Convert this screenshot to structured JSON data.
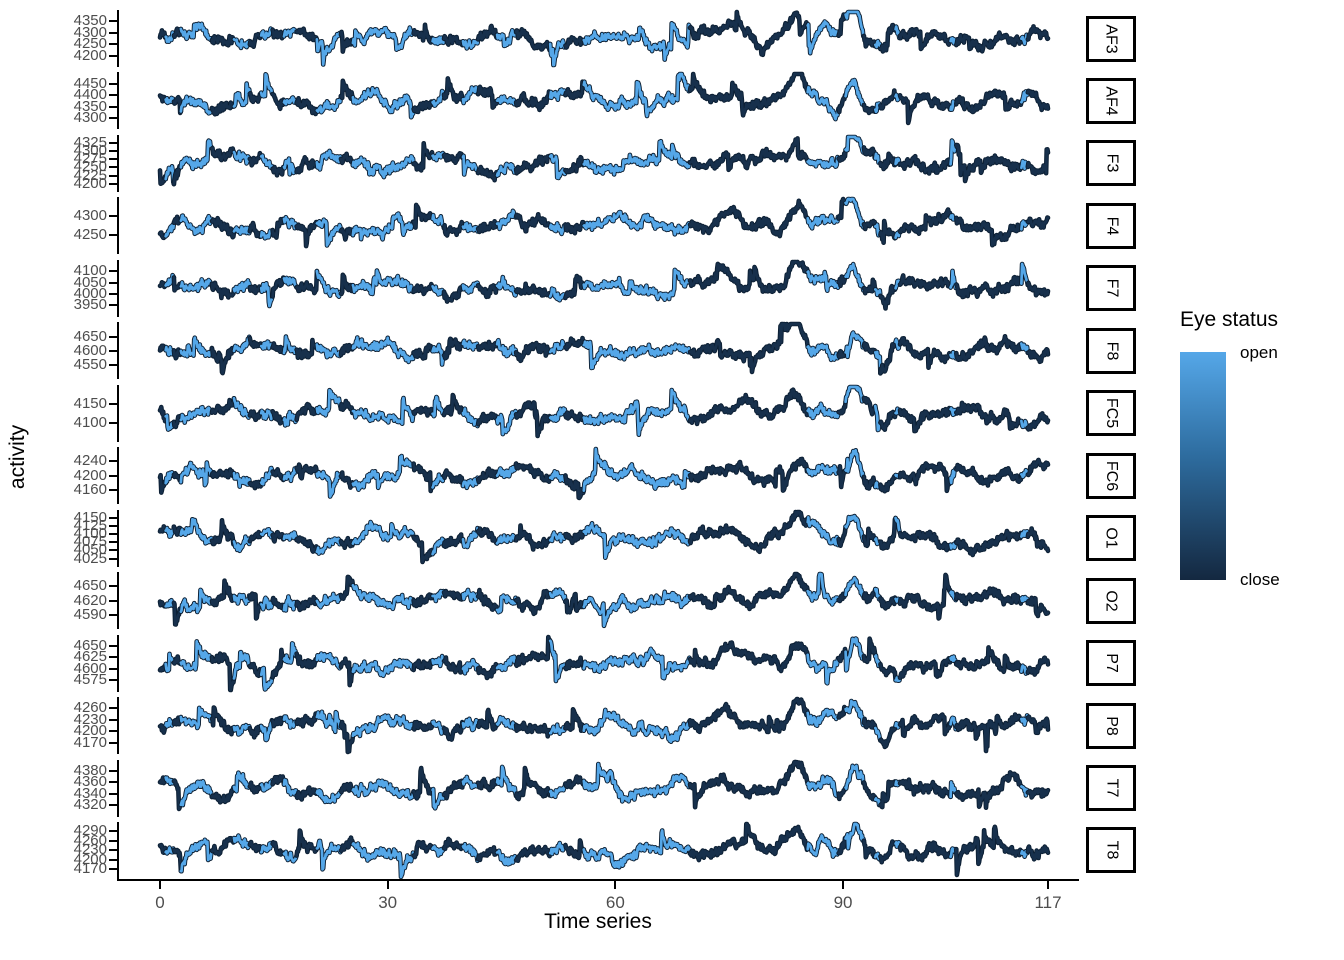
{
  "figure": {
    "kind": "faceted EEG time-series plot",
    "background": "#FFFFFF",
    "axis_color": "#000000",
    "tick_label_color": "#4D4D4D"
  },
  "chart_data": {
    "type": "line",
    "title": "",
    "xlabel": "Time series",
    "ylabel": "activity",
    "x_ticks": [
      0,
      30,
      60,
      90,
      117
    ],
    "xlim": [
      0,
      117
    ],
    "grid": false,
    "legend": {
      "title": "Eye status",
      "position": "right",
      "style": "colorbar",
      "top_label": "open",
      "bottom_label": "close",
      "entries": [
        {
          "label": "open",
          "color": "#55A7E8"
        },
        {
          "label": "close",
          "color": "#17304C"
        }
      ],
      "gradient": [
        "#55A7E8",
        "#2E6DA0",
        "#142840"
      ]
    },
    "facets": [
      {
        "label": "AF3",
        "yticks": [
          4200,
          4250,
          4300,
          4350
        ]
      },
      {
        "label": "AF4",
        "yticks": [
          4300,
          4350,
          4400,
          4450
        ]
      },
      {
        "label": "F3",
        "yticks": [
          4200,
          4225,
          4250,
          4275,
          4300,
          4325
        ]
      },
      {
        "label": "F4",
        "yticks": [
          4250,
          4300
        ]
      },
      {
        "label": "F7",
        "yticks": [
          3950,
          4000,
          4050,
          4100
        ]
      },
      {
        "label": "F8",
        "yticks": [
          4550,
          4600,
          4650
        ]
      },
      {
        "label": "FC5",
        "yticks": [
          4100,
          4150
        ]
      },
      {
        "label": "FC6",
        "yticks": [
          4160,
          4200,
          4240
        ]
      },
      {
        "label": "O1",
        "yticks": [
          4025,
          4050,
          4075,
          4100,
          4125,
          4150
        ]
      },
      {
        "label": "O2",
        "yticks": [
          4590,
          4620,
          4650
        ]
      },
      {
        "label": "P7",
        "yticks": [
          4575,
          4600,
          4625,
          4650
        ]
      },
      {
        "label": "P8",
        "yticks": [
          4170,
          4200,
          4230,
          4260
        ]
      },
      {
        "label": "T7",
        "yticks": [
          4320,
          4340,
          4360,
          4380
        ]
      },
      {
        "label": "T8",
        "yticks": [
          4170,
          4200,
          4230,
          4260,
          4290
        ]
      }
    ],
    "eye_state_segments": [
      [
        0,
        0.7,
        "close"
      ],
      [
        0.7,
        1.8,
        "open"
      ],
      [
        1.8,
        2.7,
        "close"
      ],
      [
        2.7,
        6.8,
        "open"
      ],
      [
        6.8,
        9.7,
        "close"
      ],
      [
        9.7,
        11.8,
        "open"
      ],
      [
        11.8,
        13.3,
        "close"
      ],
      [
        13.3,
        14.8,
        "open"
      ],
      [
        14.8,
        16.3,
        "close"
      ],
      [
        16.3,
        18,
        "open"
      ],
      [
        18,
        20.6,
        "close"
      ],
      [
        20.6,
        23.8,
        "open"
      ],
      [
        23.8,
        25.4,
        "close"
      ],
      [
        25.4,
        33.4,
        "open"
      ],
      [
        33.4,
        35.9,
        "close"
      ],
      [
        35.9,
        37.4,
        "open"
      ],
      [
        37.4,
        39.9,
        "close"
      ],
      [
        39.9,
        41.9,
        "open"
      ],
      [
        41.9,
        44.4,
        "close"
      ],
      [
        44.4,
        46.9,
        "open"
      ],
      [
        46.9,
        51.4,
        "close"
      ],
      [
        51.4,
        53.4,
        "open"
      ],
      [
        53.4,
        55.8,
        "close"
      ],
      [
        55.8,
        69.8,
        "open"
      ],
      [
        69.8,
        85.3,
        "close"
      ],
      [
        85.3,
        89.4,
        "open"
      ],
      [
        89.4,
        90.3,
        "close"
      ],
      [
        90.3,
        92.7,
        "open"
      ],
      [
        92.7,
        94.2,
        "close"
      ],
      [
        94.2,
        94.9,
        "open"
      ],
      [
        94.9,
        96.9,
        "close"
      ],
      [
        96.9,
        97.5,
        "open"
      ],
      [
        97.5,
        104.1,
        "close"
      ],
      [
        104.1,
        104.9,
        "open"
      ],
      [
        104.9,
        113.5,
        "close"
      ],
      [
        113.5,
        114.3,
        "open"
      ],
      [
        114.3,
        117,
        "close"
      ]
    ]
  }
}
